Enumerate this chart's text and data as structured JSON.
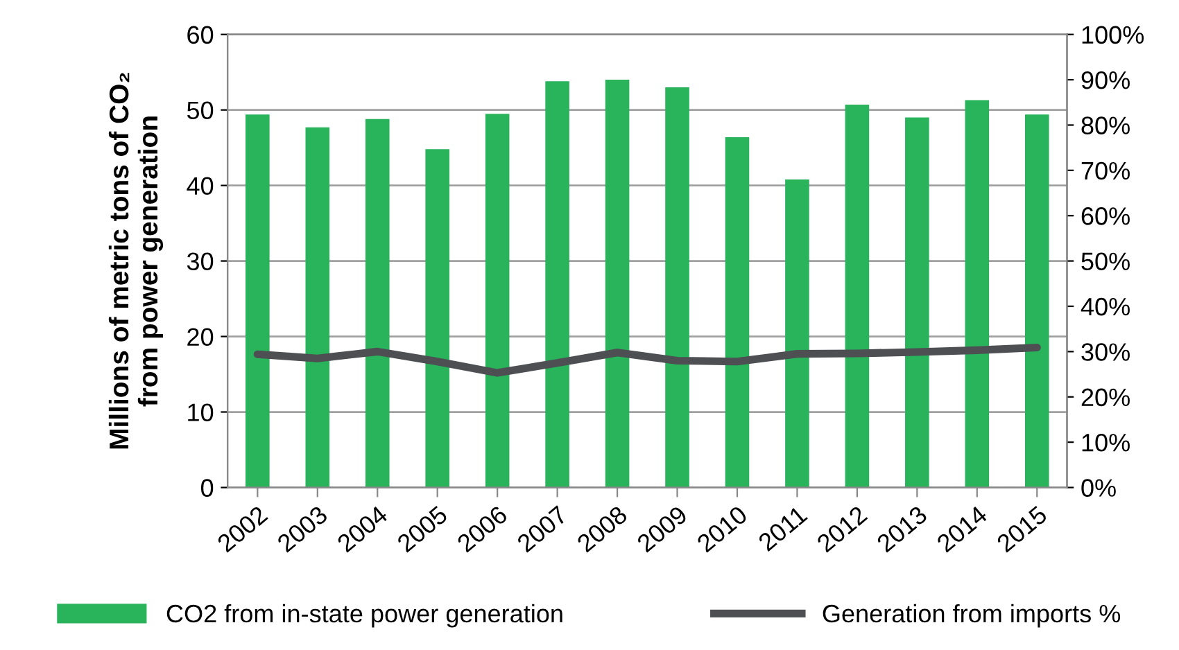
{
  "chart_data": {
    "type": "bar",
    "ylabel": "Millions of metric tons of CO₂\nfrom power generation",
    "categories": [
      "2002",
      "2003",
      "2004",
      "2005",
      "2006",
      "2007",
      "2008",
      "2009",
      "2010",
      "2011",
      "2012",
      "2013",
      "2014",
      "2015"
    ],
    "series": [
      {
        "name": "CO2 from in-state power generation",
        "color": "#29b35a",
        "values": [
          49.4,
          47.7,
          48.8,
          44.8,
          49.5,
          53.8,
          54.0,
          53.0,
          46.4,
          40.8,
          50.7,
          49.0,
          51.3,
          49.4
        ]
      },
      {
        "name": "Generation from imports %",
        "type": "line",
        "axis": "y2",
        "color": "#4d4f53",
        "values": [
          29.4,
          28.5,
          30.0,
          27.8,
          25.3,
          27.5,
          29.8,
          28.0,
          27.8,
          29.5,
          29.6,
          29.9,
          30.3,
          30.9
        ]
      }
    ],
    "ylim": [
      0,
      60
    ],
    "yticks": [
      0,
      10,
      20,
      30,
      40,
      50,
      60
    ],
    "y2lim": [
      0,
      100
    ],
    "y2ticks": [
      {
        "value": 0,
        "label": "0%"
      },
      {
        "value": 10,
        "label": "10%"
      },
      {
        "value": 20,
        "label": "20%"
      },
      {
        "value": 30,
        "label": "30%"
      },
      {
        "value": 40,
        "label": "40%"
      },
      {
        "value": 50,
        "label": "50%"
      },
      {
        "value": 60,
        "label": "60%"
      },
      {
        "value": 70,
        "label": "70%"
      },
      {
        "value": 80,
        "label": "80%"
      },
      {
        "value": 90,
        "label": "90%"
      },
      {
        "value": 100,
        "label": "100%"
      }
    ],
    "grid": "y",
    "legend": "bottom",
    "marker": "none",
    "line_style": "solid"
  }
}
